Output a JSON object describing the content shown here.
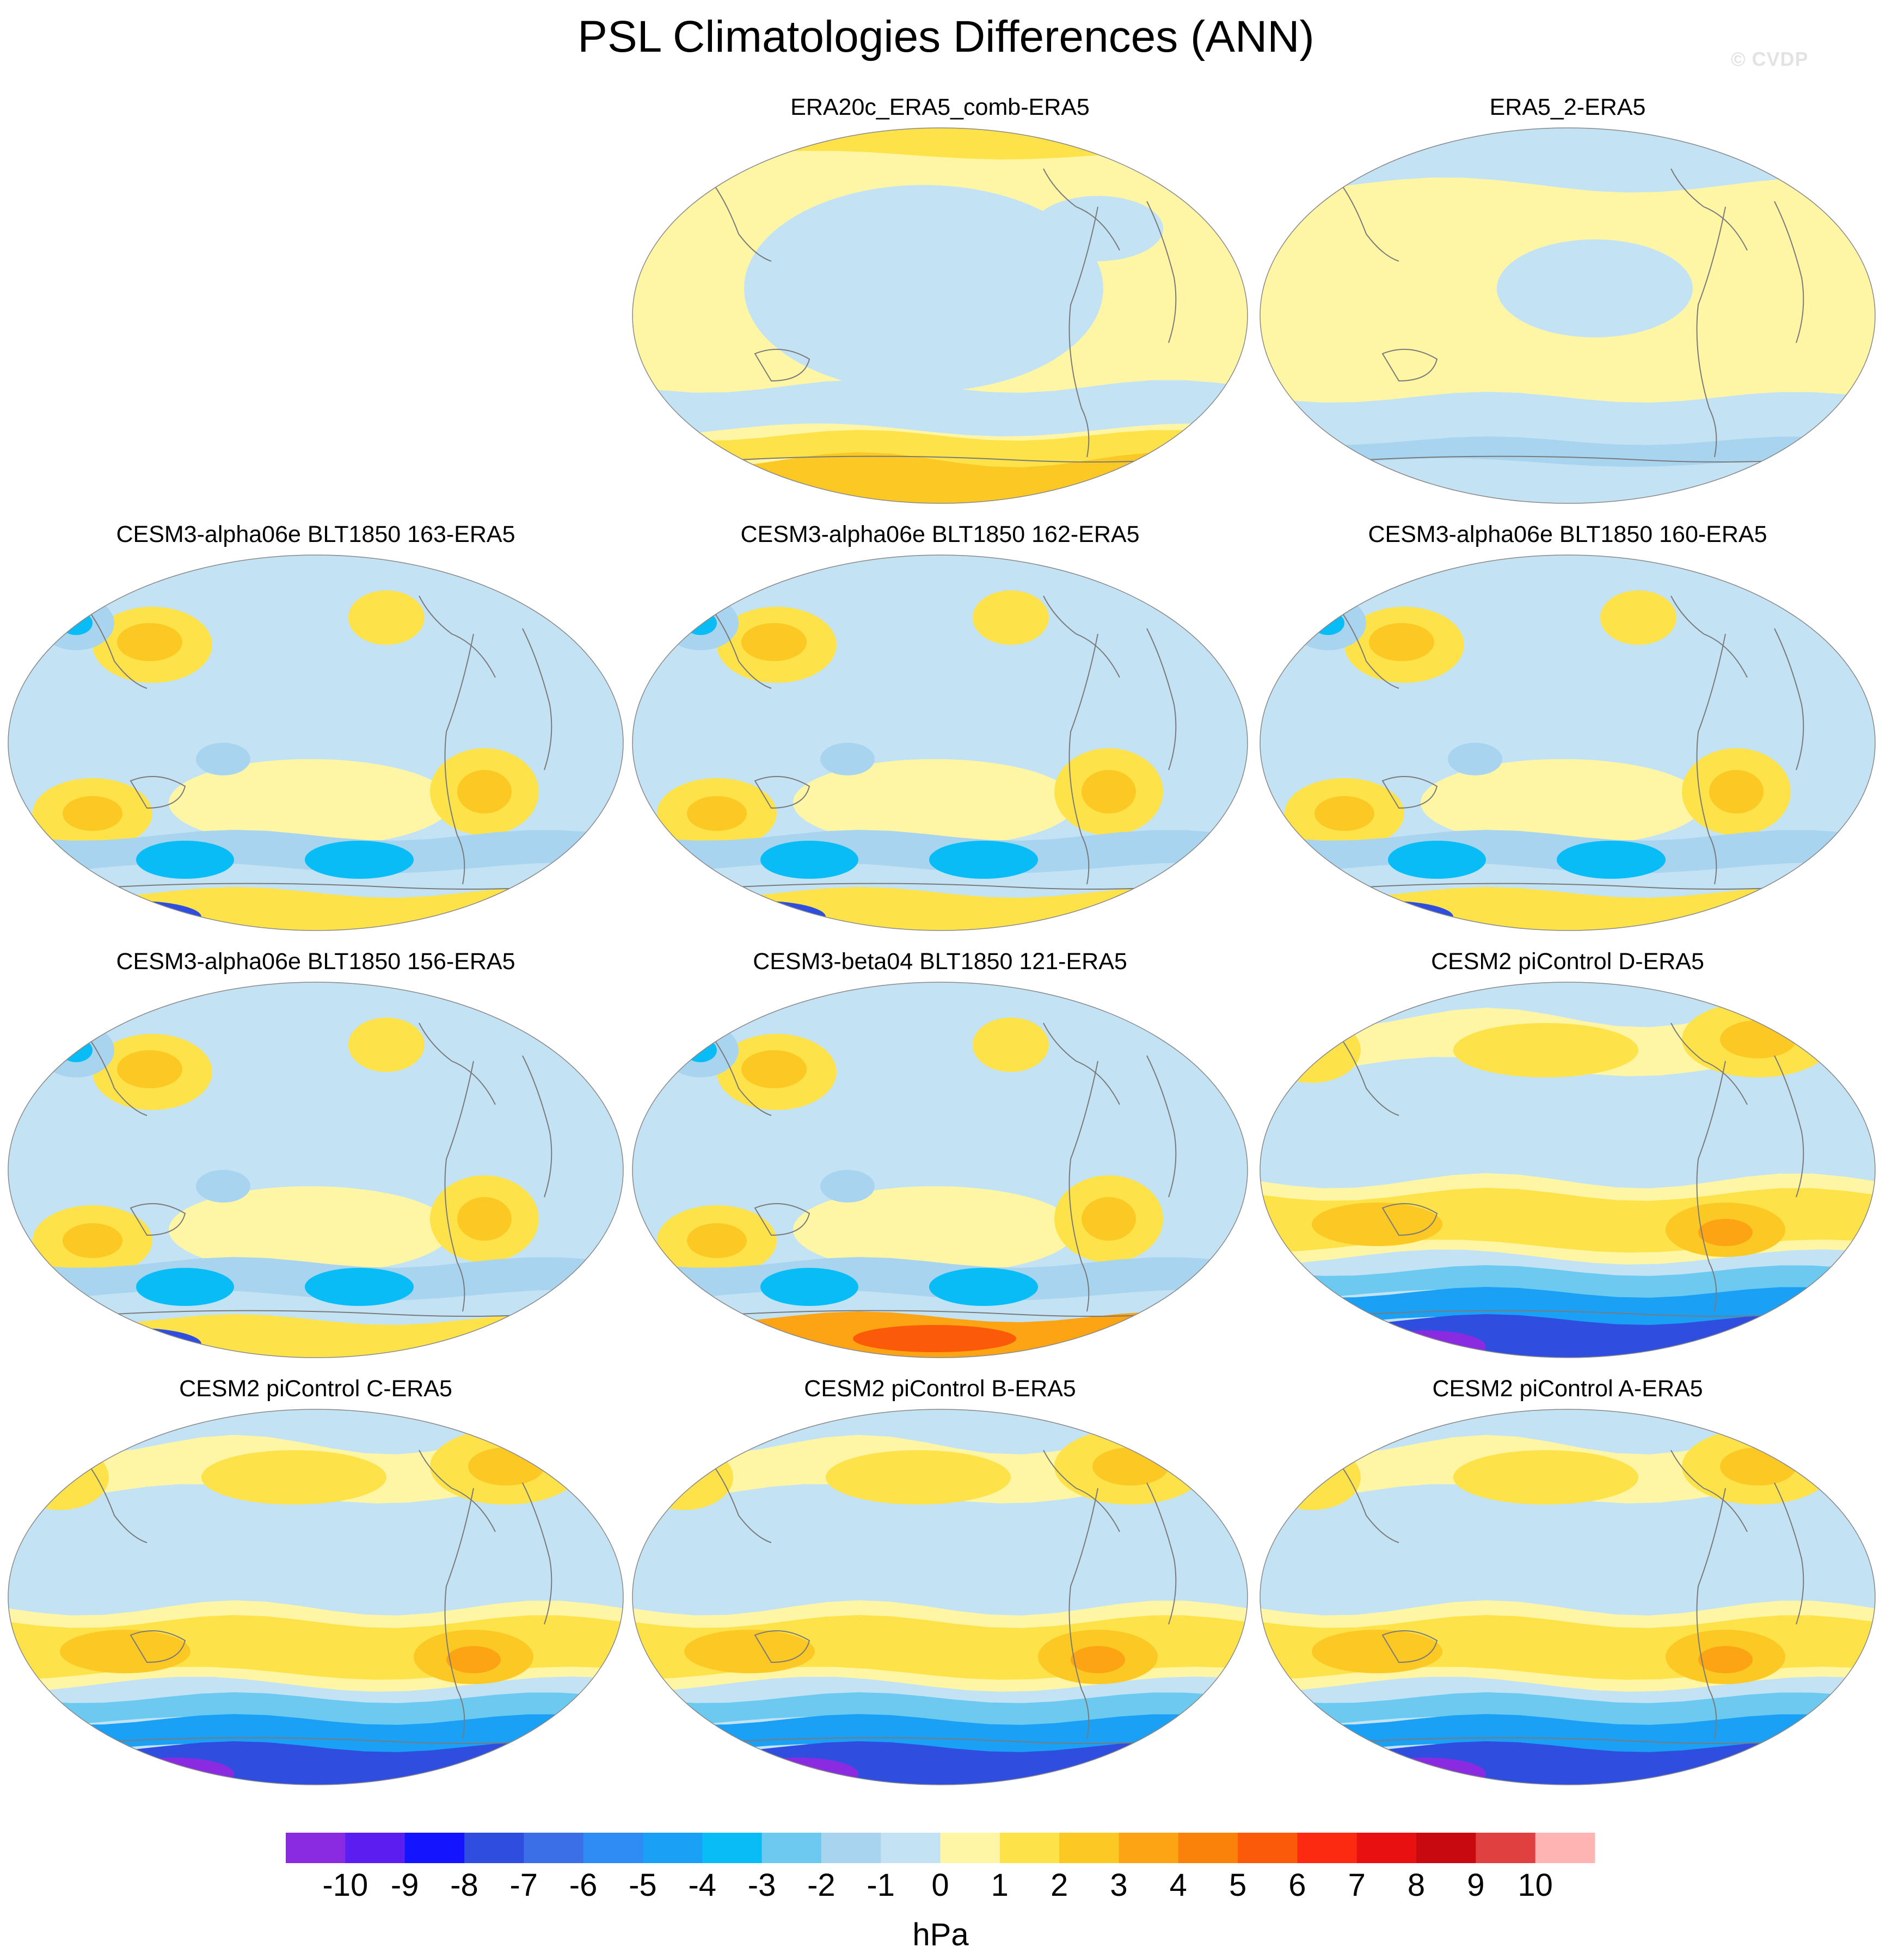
{
  "title": "PSL Climatologies Differences (ANN)",
  "watermark": "© CVDP",
  "panels": [
    {
      "label": "ERA20c_ERA5_comb-ERA5",
      "pattern": "era20c"
    },
    {
      "label": "ERA5_2-ERA5",
      "pattern": "era5_2"
    },
    {
      "label": "CESM3-alpha06e BLT1850 163-ERA5",
      "pattern": "alpha"
    },
    {
      "label": "CESM3-alpha06e BLT1850 162-ERA5",
      "pattern": "alpha"
    },
    {
      "label": "CESM3-alpha06e BLT1850 160-ERA5",
      "pattern": "alpha"
    },
    {
      "label": "CESM3-alpha06e BLT1850 156-ERA5",
      "pattern": "alpha"
    },
    {
      "label": "CESM3-beta04 BLT1850 121-ERA5",
      "pattern": "beta"
    },
    {
      "label": "CESM2 piControl D-ERA5",
      "pattern": "cesm2"
    },
    {
      "label": "CESM2 piControl C-ERA5",
      "pattern": "cesm2"
    },
    {
      "label": "CESM2 piControl B-ERA5",
      "pattern": "cesm2"
    },
    {
      "label": "CESM2 piControl A-ERA5",
      "pattern": "cesm2"
    }
  ],
  "colorbar": {
    "units": "hPa",
    "ticks": [
      "-10",
      "-9",
      "-8",
      "-7",
      "-6",
      "-5",
      "-4",
      "-3",
      "-2",
      "-1",
      "0",
      "1",
      "2",
      "3",
      "4",
      "5",
      "6",
      "7",
      "8",
      "9",
      "10"
    ],
    "colors": [
      "#8a2be2",
      "#5a1ff0",
      "#1414ff",
      "#2f4ee0",
      "#3a6fe8",
      "#2f8cf5",
      "#1aa0f5",
      "#08bdf5",
      "#6ccaf0",
      "#a9d4ef",
      "#c3e3f5",
      "#fff6a5",
      "#fde24a",
      "#fcc824",
      "#fca414",
      "#fb820a",
      "#fb5a08",
      "#fb2a10",
      "#e81010",
      "#c80a10",
      "#e04040",
      "#ffb4b4"
    ]
  },
  "palette": {
    "land": "#7a7a7a",
    "bg_neg1": "#c3e3f5",
    "neg2": "#a9d4ef",
    "neg3": "#6ccaf0",
    "neg4": "#08bdf5",
    "neg5": "#1aa0f5",
    "neg7": "#2f4ee0",
    "neg9": "#5a1ff0",
    "neg10": "#8a2be2",
    "pos1": "#fff6a5",
    "pos2": "#fde24a",
    "pos3": "#fcc824",
    "pos4": "#fca414",
    "pos6": "#fb5a08",
    "pos8": "#e81010"
  }
}
